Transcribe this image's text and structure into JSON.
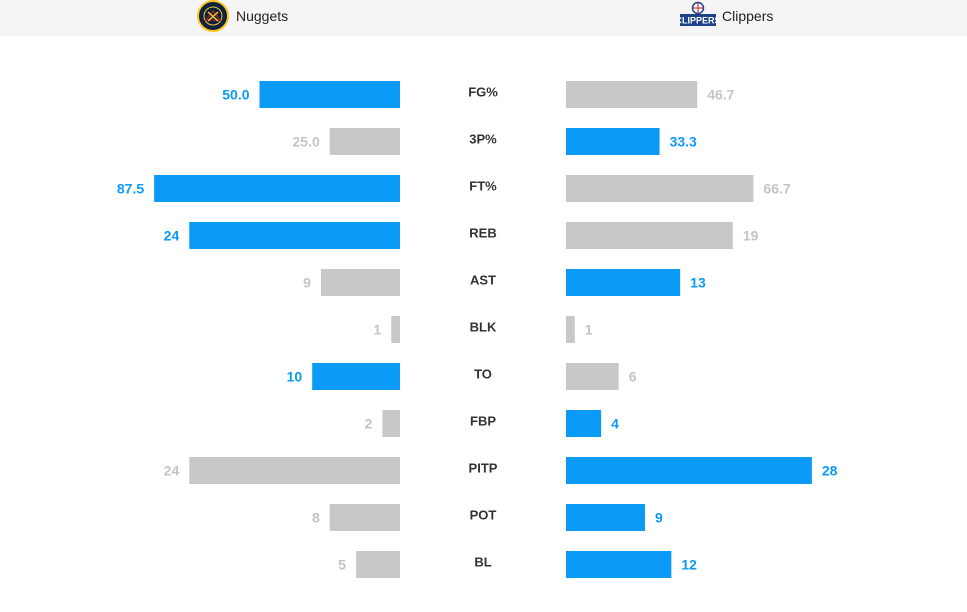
{
  "teams": {
    "home": {
      "name": "Nuggets",
      "logo_icon": "nuggets-logo-icon"
    },
    "away": {
      "name": "Clippers",
      "logo_icon": "clippers-logo-icon",
      "logo_text": "CLIPPERS"
    }
  },
  "colors": {
    "leader": "#0b9af5",
    "other": "#c8c8c8",
    "other_text": "#c4c4c4"
  },
  "chart_data": {
    "type": "bar",
    "orientation": "horizontal-diverging",
    "categories": [
      "FG%",
      "3P%",
      "FT%",
      "REB",
      "AST",
      "BLK",
      "TO",
      "FBP",
      "PITP",
      "POT",
      "BL"
    ],
    "series": [
      {
        "name": "Nuggets",
        "values": [
          50.0,
          25.0,
          87.5,
          24,
          9,
          1,
          10,
          2,
          24,
          8,
          5
        ],
        "labels": [
          "50.0",
          "25.0",
          "87.5",
          "24",
          "9",
          "1",
          "10",
          "2",
          "24",
          "8",
          "5"
        ],
        "highlight": [
          true,
          false,
          true,
          true,
          false,
          false,
          true,
          false,
          false,
          false,
          false
        ]
      },
      {
        "name": "Clippers",
        "values": [
          46.7,
          33.3,
          66.7,
          19,
          13,
          1,
          6,
          4,
          28,
          9,
          12
        ],
        "labels": [
          "46.7",
          "33.3",
          "66.7",
          "19",
          "13",
          "1",
          "6",
          "4",
          "28",
          "9",
          "12"
        ],
        "highlight": [
          false,
          true,
          false,
          false,
          true,
          false,
          false,
          true,
          true,
          true,
          true
        ]
      }
    ],
    "grid": false,
    "legend": "none"
  }
}
